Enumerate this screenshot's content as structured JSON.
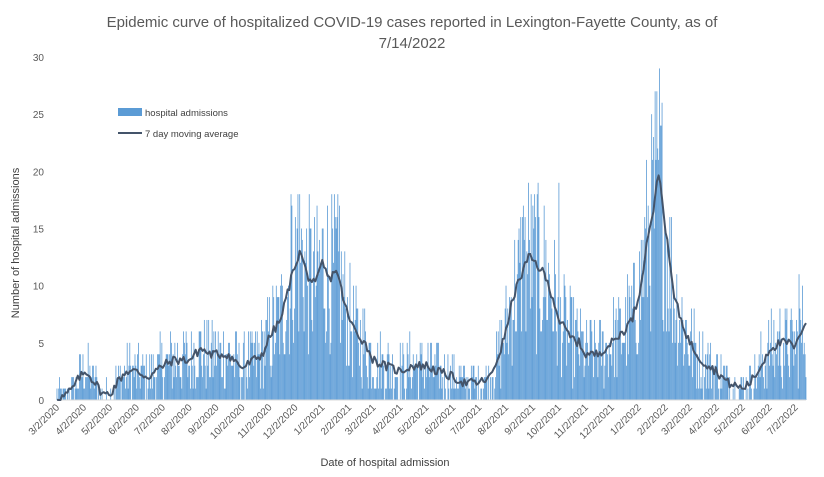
{
  "chart_data": {
    "type": "bar",
    "title_line1": "Epidemic curve of hospitalized COVID-19 cases reported in Lexington-Fayette County, as of",
    "title_line2": "7/14/2022",
    "xlabel": "Date of hospital admission",
    "ylabel": "Number of hospital admissions",
    "ylim": [
      0,
      30
    ],
    "yticks": [
      0,
      5,
      10,
      15,
      20,
      25,
      30
    ],
    "xlim": [
      "2020-03-02",
      "2022-07-14"
    ],
    "x_tick_labels": [
      "3/2/2020",
      "4/2/2020",
      "5/2/2020",
      "6/2/2020",
      "7/2/2020",
      "8/2/2020",
      "9/2/2020",
      "10/2/2020",
      "11/2/2020",
      "12/2/2020",
      "1/2/2021",
      "2/2/2021",
      "3/2/2021",
      "4/2/2021",
      "5/2/2021",
      "6/2/2021",
      "7/2/2021",
      "8/2/2021",
      "9/2/2021",
      "10/2/2021",
      "11/2/2021",
      "12/2/2021",
      "1/2/2022",
      "2/2/2022",
      "3/2/2022",
      "4/2/2022",
      "5/2/2022",
      "6/2/2022",
      "7/2/2022"
    ],
    "grid": false,
    "legend_position": "top-left",
    "series": [
      {
        "name": "hospital admissions",
        "type": "bar",
        "color": "#5B9BD5"
      },
      {
        "name": "7 day moving average",
        "type": "line",
        "color": "#44546A"
      }
    ],
    "moving_average_points": [
      [
        "2020-03-02",
        0.2
      ],
      [
        "2020-03-10",
        0.3
      ],
      [
        "2020-03-20",
        1.0
      ],
      [
        "2020-03-28",
        2.0
      ],
      [
        "2020-04-05",
        2.5
      ],
      [
        "2020-04-15",
        1.5
      ],
      [
        "2020-04-24",
        0.5
      ],
      [
        "2020-05-02",
        0.5
      ],
      [
        "2020-05-10",
        1.5
      ],
      [
        "2020-05-20",
        2.5
      ],
      [
        "2020-06-02",
        2.5
      ],
      [
        "2020-06-15",
        2.0
      ],
      [
        "2020-07-02",
        3.0
      ],
      [
        "2020-07-15",
        3.5
      ],
      [
        "2020-08-02",
        3.5
      ],
      [
        "2020-08-15",
        4.5
      ],
      [
        "2020-08-25",
        4.0
      ],
      [
        "2020-09-02",
        4.0
      ],
      [
        "2020-09-15",
        4.0
      ],
      [
        "2020-10-02",
        2.8
      ],
      [
        "2020-10-15",
        3.5
      ],
      [
        "2020-10-25",
        4.0
      ],
      [
        "2020-11-02",
        5.5
      ],
      [
        "2020-11-15",
        7.0
      ],
      [
        "2020-11-25",
        10.0
      ],
      [
        "2020-12-02",
        12.0
      ],
      [
        "2020-12-08",
        13.0
      ],
      [
        "2020-12-15",
        11.0
      ],
      [
        "2020-12-25",
        10.0
      ],
      [
        "2021-01-02",
        12.0
      ],
      [
        "2021-01-10",
        10.5
      ],
      [
        "2021-01-18",
        11.5
      ],
      [
        "2021-01-26",
        9.0
      ],
      [
        "2021-02-02",
        7.0
      ],
      [
        "2021-02-10",
        6.0
      ],
      [
        "2021-02-20",
        5.0
      ],
      [
        "2021-03-02",
        3.5
      ],
      [
        "2021-03-15",
        3.0
      ],
      [
        "2021-04-02",
        2.5
      ],
      [
        "2021-04-15",
        3.0
      ],
      [
        "2021-05-02",
        3.0
      ],
      [
        "2021-05-15",
        2.5
      ],
      [
        "2021-06-02",
        2.0
      ],
      [
        "2021-06-15",
        1.5
      ],
      [
        "2021-07-02",
        1.5
      ],
      [
        "2021-07-15",
        2.0
      ],
      [
        "2021-07-25",
        4.0
      ],
      [
        "2021-08-02",
        6.0
      ],
      [
        "2021-08-10",
        9.0
      ],
      [
        "2021-08-20",
        11.0
      ],
      [
        "2021-08-28",
        12.5
      ],
      [
        "2021-09-05",
        12.0
      ],
      [
        "2021-09-15",
        11.0
      ],
      [
        "2021-09-25",
        9.0
      ],
      [
        "2021-10-02",
        7.0
      ],
      [
        "2021-10-15",
        5.5
      ],
      [
        "2021-10-25",
        5.0
      ],
      [
        "2021-11-02",
        4.0
      ],
      [
        "2021-11-15",
        4.0
      ],
      [
        "2021-12-02",
        5.0
      ],
      [
        "2021-12-15",
        6.0
      ],
      [
        "2021-12-25",
        7.0
      ],
      [
        "2022-01-02",
        9.0
      ],
      [
        "2022-01-08",
        12.0
      ],
      [
        "2022-01-14",
        15.0
      ],
      [
        "2022-01-20",
        17.0
      ],
      [
        "2022-01-25",
        20.0
      ],
      [
        "2022-01-30",
        17.0
      ],
      [
        "2022-02-05",
        13.0
      ],
      [
        "2022-02-12",
        9.0
      ],
      [
        "2022-02-20",
        7.0
      ],
      [
        "2022-03-02",
        5.0
      ],
      [
        "2022-03-15",
        3.5
      ],
      [
        "2022-04-02",
        2.5
      ],
      [
        "2022-04-15",
        1.5
      ],
      [
        "2022-05-02",
        1.0
      ],
      [
        "2022-05-10",
        1.5
      ],
      [
        "2022-05-20",
        2.5
      ],
      [
        "2022-06-02",
        4.5
      ],
      [
        "2022-06-15",
        5.0
      ],
      [
        "2022-06-25",
        5.0
      ],
      [
        "2022-07-02",
        4.5
      ],
      [
        "2022-07-08",
        6.0
      ],
      [
        "2022-07-14",
        7.0
      ]
    ]
  }
}
